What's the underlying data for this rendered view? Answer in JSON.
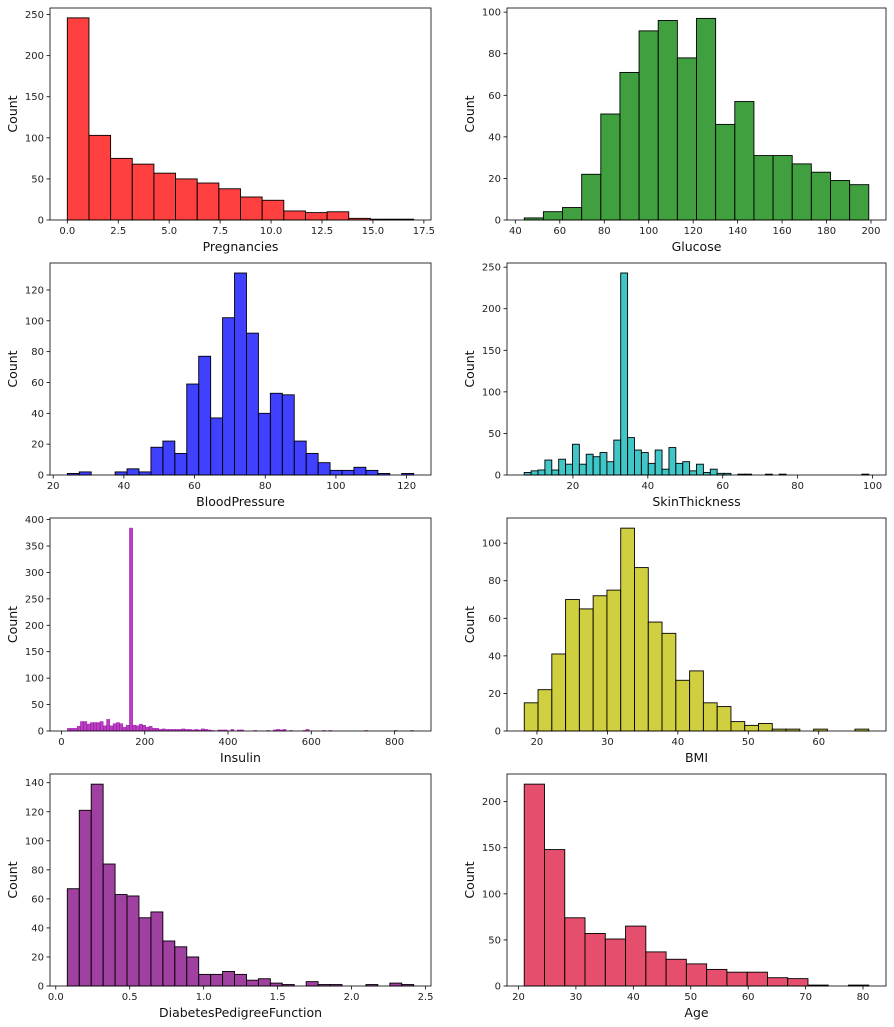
{
  "chart_data": [
    {
      "type": "bar",
      "subtype": "histogram",
      "title": "",
      "xlabel": "Pregnancies",
      "ylabel": "Count",
      "color": "#ff0000",
      "bin_start": 0,
      "bin_end": 17,
      "values": [
        246,
        103,
        75,
        68,
        57,
        50,
        45,
        38,
        28,
        24,
        11,
        9,
        10,
        2,
        1,
        1
      ],
      "xlim": [
        -0.85,
        17.85
      ],
      "ylim": [
        0,
        258
      ],
      "xticks": [
        0,
        2.5,
        5,
        7.5,
        10,
        12.5,
        15,
        17.5
      ],
      "xtick_labels": [
        "0.0",
        "2.5",
        "5.0",
        "7.5",
        "10.0",
        "12.5",
        "15.0",
        "17.5"
      ],
      "yticks": [
        0,
        50,
        100,
        150,
        200,
        250
      ],
      "ytick_labels": [
        "0",
        "50",
        "100",
        "150",
        "200",
        "250"
      ]
    },
    {
      "type": "bar",
      "subtype": "histogram",
      "title": "",
      "xlabel": "Glucose",
      "ylabel": "Count",
      "color": "#008000",
      "bin_start": 44,
      "bin_end": 199,
      "values": [
        1,
        4,
        6,
        22,
        51,
        71,
        91,
        96,
        78,
        97,
        46,
        57,
        31,
        31,
        27,
        23,
        19,
        17
      ],
      "xlim": [
        36.25,
        206.75
      ],
      "ylim": [
        0,
        102
      ],
      "xticks": [
        40,
        60,
        80,
        100,
        120,
        140,
        160,
        180,
        200
      ],
      "xtick_labels": [
        "40",
        "60",
        "80",
        "100",
        "120",
        "140",
        "160",
        "180",
        "200"
      ],
      "yticks": [
        0,
        20,
        40,
        60,
        80,
        100
      ],
      "ytick_labels": [
        "0",
        "20",
        "40",
        "60",
        "80",
        "100"
      ]
    },
    {
      "type": "bar",
      "subtype": "histogram",
      "title": "",
      "xlabel": "BloodPressure",
      "ylabel": "Count",
      "color": "#0000ff",
      "bin_start": 24,
      "bin_end": 122,
      "values": [
        1,
        2,
        0,
        0,
        2,
        4,
        2,
        18,
        22,
        14,
        59,
        77,
        37,
        102,
        131,
        92,
        40,
        53,
        52,
        22,
        14,
        8,
        3,
        3,
        5,
        3,
        1,
        0,
        1
      ],
      "xlim": [
        19.1,
        126.9
      ],
      "ylim": [
        0,
        137.5
      ],
      "xticks": [
        20,
        40,
        60,
        80,
        100,
        120
      ],
      "xtick_labels": [
        "20",
        "40",
        "60",
        "80",
        "100",
        "120"
      ],
      "yticks": [
        0,
        20,
        40,
        60,
        80,
        100,
        120
      ],
      "ytick_labels": [
        "0",
        "20",
        "40",
        "60",
        "80",
        "100",
        "120"
      ]
    },
    {
      "type": "bar",
      "subtype": "histogram",
      "title": "",
      "xlabel": "SkinThickness",
      "ylabel": "Count",
      "color": "#00b3b3",
      "bin_start": 7,
      "bin_end": 99,
      "values": [
        3,
        5,
        6,
        18,
        6,
        19,
        13,
        37,
        13,
        25,
        22,
        27,
        16,
        42,
        243,
        45,
        30,
        27,
        14,
        30,
        7,
        33,
        14,
        16,
        5,
        13,
        3,
        7,
        2,
        2,
        0,
        1,
        1,
        0,
        0,
        1,
        0,
        1,
        0,
        0,
        0,
        0,
        0,
        0,
        0,
        0,
        0,
        0,
        0,
        1
      ],
      "xlim": [
        2.4,
        103.6
      ],
      "ylim": [
        0,
        255
      ],
      "xticks": [
        20,
        40,
        60,
        80,
        100
      ],
      "xtick_labels": [
        "20",
        "40",
        "60",
        "80",
        "100"
      ],
      "yticks": [
        0,
        50,
        100,
        150,
        200,
        250
      ],
      "ytick_labels": [
        "0",
        "50",
        "100",
        "150",
        "200",
        "250"
      ]
    },
    {
      "type": "bar",
      "subtype": "histogram",
      "title": "",
      "xlabel": "Insulin",
      "ylabel": "Count",
      "color": "#9e00a8",
      "bin_start": 14,
      "bin_end": 846,
      "values": [
        5,
        5,
        5,
        9,
        18,
        18,
        13,
        16,
        16,
        16,
        18,
        10,
        22,
        10,
        14,
        16,
        14,
        7,
        11,
        384,
        11,
        10,
        13,
        11,
        7,
        9,
        5,
        5,
        3,
        4,
        3,
        3,
        3,
        3,
        3,
        4,
        3,
        3,
        2,
        3,
        2,
        4,
        3,
        2,
        1,
        0,
        2,
        2,
        2,
        0,
        3,
        0,
        2,
        2,
        0,
        0,
        0,
        1,
        0,
        0,
        0,
        1,
        0,
        2,
        3,
        2,
        3,
        0,
        1,
        0,
        0,
        0,
        1,
        3,
        0,
        0,
        0,
        0,
        1,
        0,
        1,
        0,
        0,
        0,
        0,
        0,
        0,
        0,
        0,
        0,
        0,
        1,
        0,
        0,
        0,
        0,
        0,
        0,
        0,
        0,
        1,
        0,
        0,
        0,
        0,
        1
      ],
      "xlim": [
        -27.6,
        887.6
      ],
      "ylim": [
        0,
        403
      ],
      "xticks": [
        0,
        200,
        400,
        600,
        800
      ],
      "xtick_labels": [
        "0",
        "200",
        "400",
        "600",
        "800"
      ],
      "yticks": [
        0,
        50,
        100,
        150,
        200,
        250,
        300,
        350,
        400
      ],
      "ytick_labels": [
        "0",
        "50",
        "100",
        "150",
        "200",
        "250",
        "300",
        "350",
        "400"
      ]
    },
    {
      "type": "bar",
      "subtype": "histogram",
      "title": "",
      "xlabel": "BMI",
      "ylabel": "Count",
      "color": "#bfbf00",
      "bin_start": 18.2,
      "bin_end": 67.1,
      "values": [
        15,
        22,
        41,
        70,
        65,
        72,
        75,
        108,
        87,
        58,
        52,
        27,
        32,
        15,
        13,
        5,
        3,
        4,
        1,
        1,
        0,
        1,
        0,
        0,
        1
      ],
      "xlim": [
        15.75,
        69.55
      ],
      "ylim": [
        0,
        113.4
      ],
      "xticks": [
        20,
        30,
        40,
        50,
        60
      ],
      "xtick_labels": [
        "20",
        "30",
        "40",
        "50",
        "60"
      ],
      "yticks": [
        0,
        20,
        40,
        60,
        80,
        100
      ],
      "ytick_labels": [
        "0",
        "20",
        "40",
        "60",
        "80",
        "100"
      ]
    },
    {
      "type": "bar",
      "subtype": "histogram",
      "title": "",
      "xlabel": "DiabetesPedigreeFunction",
      "ylabel": "Count",
      "color": "#800080",
      "bin_start": 0.078,
      "bin_end": 2.42,
      "values": [
        67,
        121,
        139,
        84,
        63,
        62,
        47,
        51,
        31,
        27,
        20,
        8,
        8,
        10,
        8,
        4,
        5,
        2,
        1,
        0,
        3,
        1,
        1,
        0,
        0,
        1,
        0,
        2,
        1
      ],
      "xlim": [
        -0.039,
        2.537
      ],
      "ylim": [
        0,
        146
      ],
      "xticks": [
        0,
        0.5,
        1.0,
        1.5,
        2.0,
        2.5
      ],
      "xtick_labels": [
        "0.0",
        "0.5",
        "1.0",
        "1.5",
        "2.0",
        "2.5"
      ],
      "yticks": [
        0,
        20,
        40,
        60,
        80,
        100,
        120,
        140
      ],
      "ytick_labels": [
        "0",
        "20",
        "40",
        "60",
        "80",
        "100",
        "120",
        "140"
      ]
    },
    {
      "type": "bar",
      "subtype": "histogram",
      "title": "",
      "xlabel": "Age",
      "ylabel": "Count",
      "color": "#dc143c",
      "bin_start": 21,
      "bin_end": 81,
      "values": [
        219,
        148,
        74,
        57,
        51,
        65,
        37,
        29,
        24,
        18,
        15,
        15,
        9,
        8,
        1,
        0,
        1
      ],
      "xlim": [
        18,
        84
      ],
      "ylim": [
        0,
        230
      ],
      "xticks": [
        20,
        30,
        40,
        50,
        60,
        70,
        80
      ],
      "xtick_labels": [
        "20",
        "30",
        "40",
        "50",
        "60",
        "70",
        "80"
      ],
      "yticks": [
        0,
        50,
        100,
        150,
        200
      ],
      "ytick_labels": [
        "0",
        "50",
        "100",
        "150",
        "200"
      ]
    }
  ]
}
